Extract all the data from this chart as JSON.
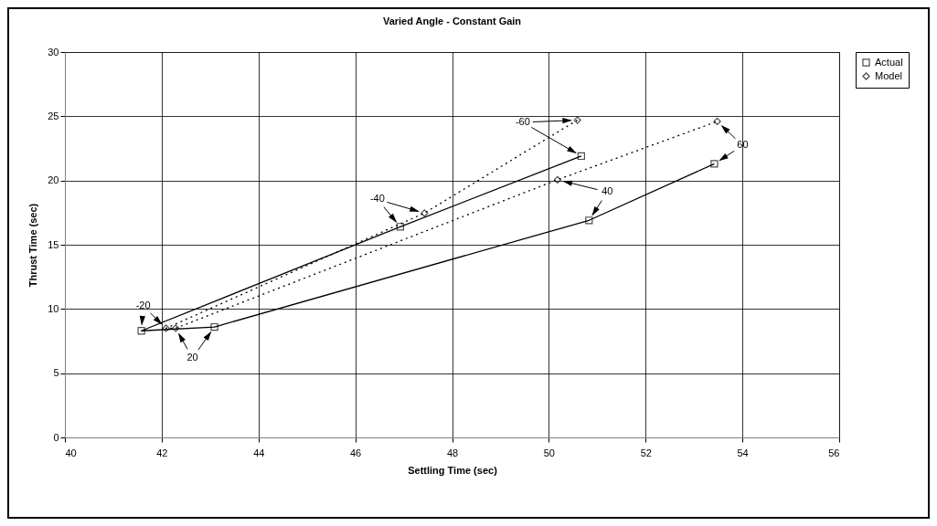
{
  "chart_data": {
    "type": "line",
    "title": "Varied Angle - Constant Gain",
    "xlabel": "Settling Time (sec)",
    "ylabel": "Thrust Time (sec)",
    "xlim": [
      40,
      56
    ],
    "xticks": [
      40,
      42,
      44,
      46,
      48,
      50,
      52,
      54,
      56
    ],
    "ylim": [
      0,
      30
    ],
    "yticks": [
      0,
      5,
      10,
      15,
      20,
      25,
      30
    ],
    "grid": true,
    "legend": "right",
    "series": [
      {
        "name": "Actual",
        "color": "#000000",
        "line_style": "solid",
        "marker": "square",
        "x": [
          50.67,
          46.93,
          41.58,
          43.09,
          50.83,
          53.42
        ],
        "values": [
          21.9,
          16.4,
          8.3,
          8.6,
          16.9,
          21.3
        ]
      },
      {
        "name": "Model",
        "color": "#000000",
        "line_style": "dotted",
        "marker": "diamond",
        "x": [
          50.59,
          47.43,
          42.09,
          42.29,
          50.18,
          53.48
        ],
        "values": [
          24.7,
          17.46,
          8.5,
          8.5,
          20.06,
          24.6
        ]
      }
    ],
    "annotations": [
      {
        "text": "-60",
        "x": 50.67,
        "y": 21.9
      },
      {
        "text": "-40",
        "x": 46.93,
        "y": 16.4
      },
      {
        "text": "-20",
        "x": 41.58,
        "y": 8.3
      },
      {
        "text": "20",
        "x": 43.09,
        "y": 8.6
      },
      {
        "text": "40",
        "x": 50.83,
        "y": 16.9
      },
      {
        "text": "60",
        "x": 53.42,
        "y": 21.3
      }
    ]
  }
}
